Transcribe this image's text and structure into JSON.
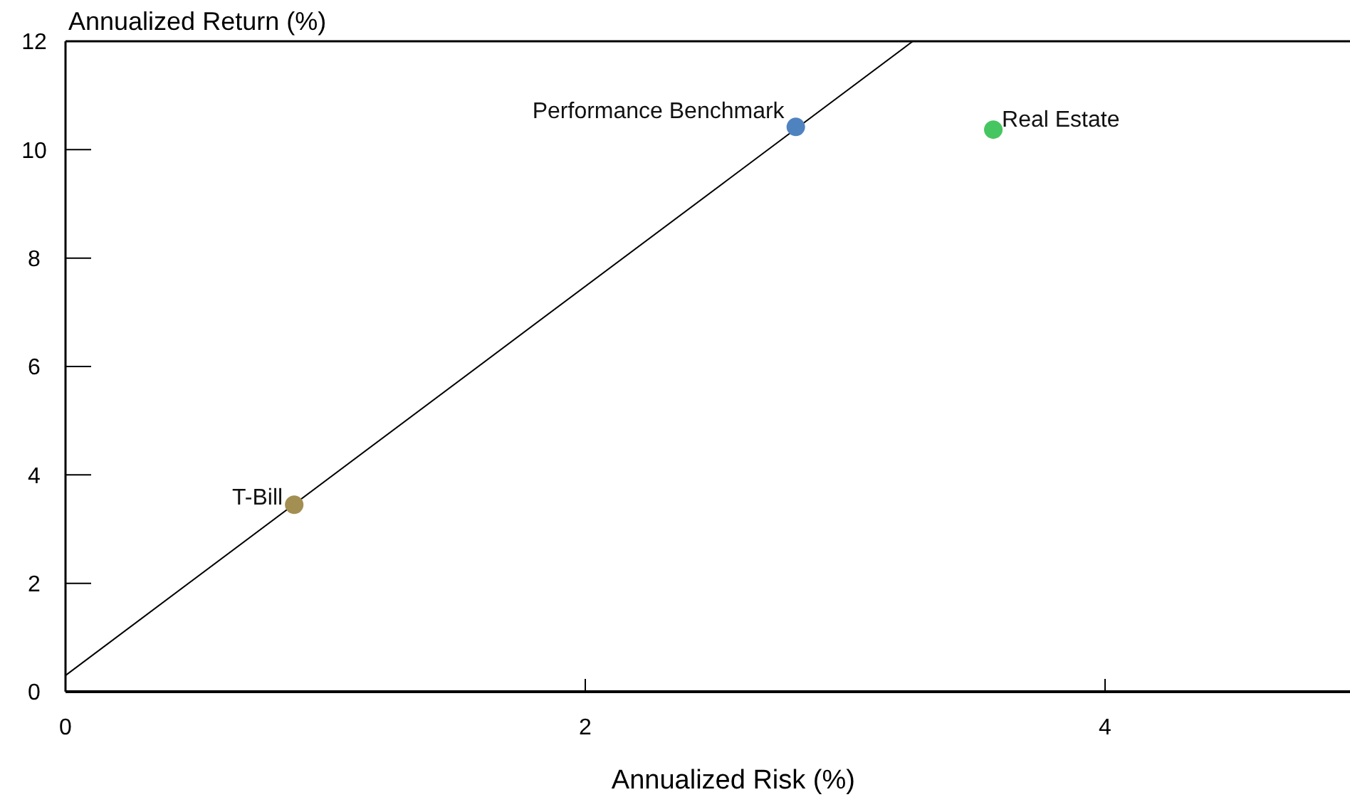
{
  "chart_data": {
    "type": "scatter",
    "xlabel": "Annualized Risk (%)",
    "ylabel": "Annualized Return (%)",
    "xlim": [
      0,
      4.92
    ],
    "ylim": [
      0,
      12
    ],
    "xticks": [
      0,
      2,
      4
    ],
    "yticks": [
      0,
      2,
      4,
      6,
      8,
      10,
      12
    ],
    "grid": false,
    "marker": "circle",
    "series": [
      {
        "type": "line",
        "x": [
          0,
          3.26
        ],
        "values": [
          0.3,
          12
        ],
        "color": "#000000",
        "marker": "none",
        "line_style": "solid"
      },
      {
        "name": "T-Bill",
        "x": [
          0.88
        ],
        "values": [
          3.45
        ],
        "color": "#a38f52"
      },
      {
        "name": "Performance Benchmark",
        "x": [
          2.81
        ],
        "values": [
          10.42
        ],
        "color": "#4f83c0"
      },
      {
        "name": "Real Estate",
        "x": [
          3.57
        ],
        "values": [
          10.37
        ],
        "color": "#46c660"
      }
    ]
  }
}
